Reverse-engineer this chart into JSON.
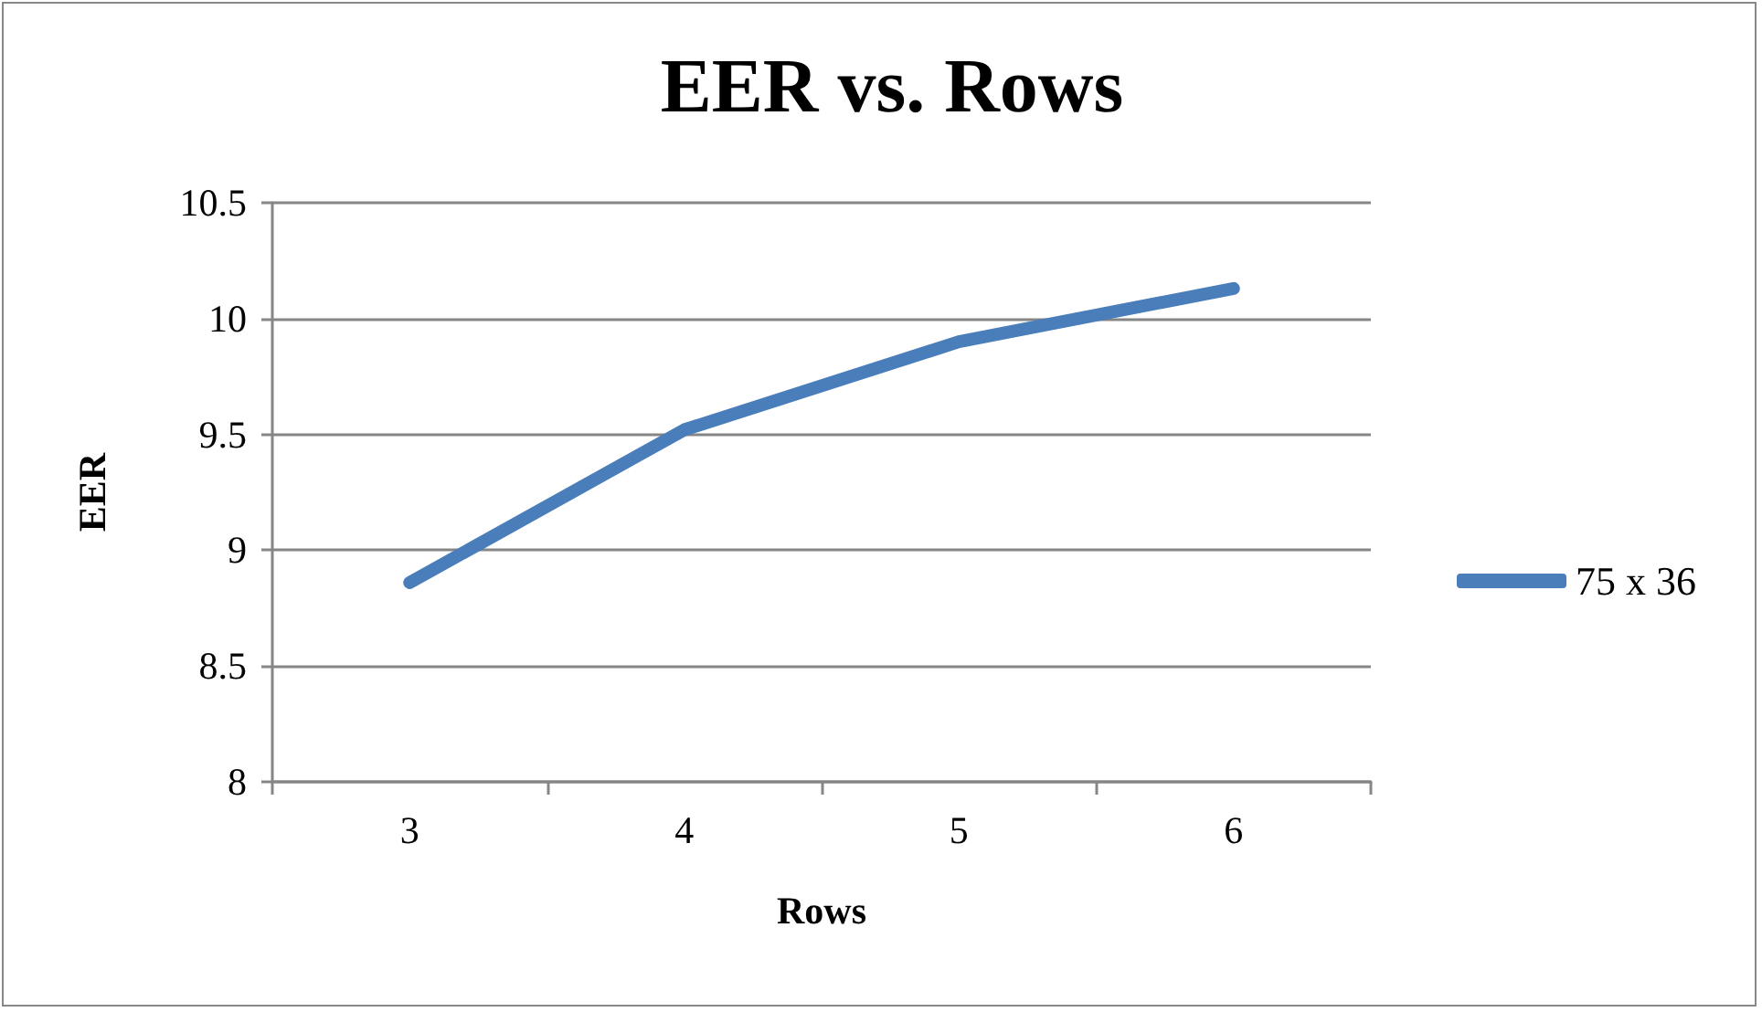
{
  "chart_data": {
    "type": "line",
    "title": "EER vs. Rows",
    "xlabel": "Rows",
    "ylabel": "EER",
    "categories": [
      "3",
      "4",
      "5",
      "6"
    ],
    "series": [
      {
        "name": "75 x 36",
        "color": "#4a7ebb",
        "values": [
          8.86,
          9.52,
          9.9,
          10.13
        ]
      }
    ],
    "ylim": [
      8,
      10.5
    ],
    "yticks": [
      8,
      8.5,
      9,
      9.5,
      10,
      10.5
    ],
    "grid": "y",
    "legend": "right",
    "marker": "none",
    "line_style": "solid"
  }
}
